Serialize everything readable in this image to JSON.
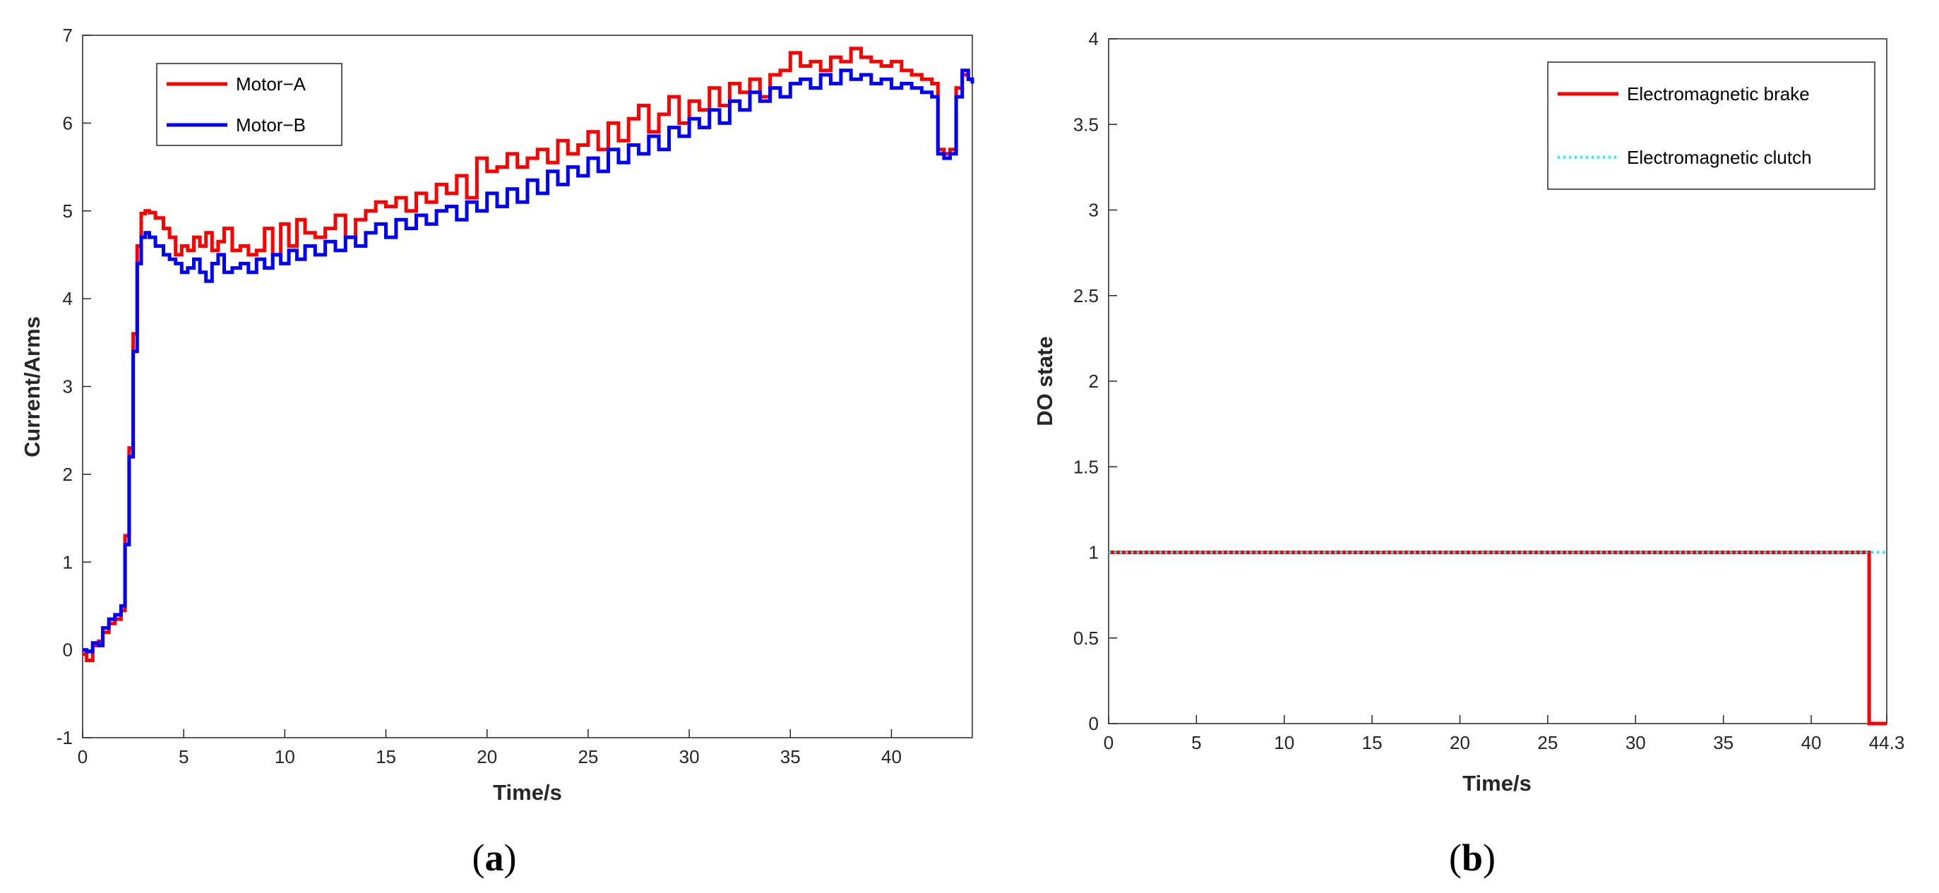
{
  "chart_data": [
    {
      "id": "a",
      "type": "line",
      "title": "",
      "xlabel": "Time/s",
      "ylabel": "Current/Arms",
      "xlim": [
        0,
        44
      ],
      "ylim": [
        -1,
        7
      ],
      "xticks": [
        0,
        5,
        10,
        15,
        20,
        25,
        30,
        35,
        40
      ],
      "yticks": [
        -1,
        0,
        1,
        2,
        3,
        4,
        5,
        6,
        7
      ],
      "grid": false,
      "legend": "top-left",
      "caption": {
        "open": "(",
        "letter": "a",
        "close": ")"
      },
      "series": [
        {
          "name": "Motor−A",
          "color": "#ff0000",
          "step": true,
          "x": [
            0,
            0.2,
            0.5,
            0.8,
            1.0,
            1.3,
            1.6,
            1.9,
            2.1,
            2.3,
            2.5,
            2.7,
            2.9,
            3.1,
            3.3,
            3.6,
            4.0,
            4.3,
            4.6,
            4.9,
            5.2,
            5.5,
            5.8,
            6.1,
            6.4,
            6.7,
            7.0,
            7.4,
            7.8,
            8.2,
            8.6,
            9.0,
            9.4,
            9.8,
            10.2,
            10.6,
            11.0,
            11.5,
            12.0,
            12.5,
            13.0,
            13.5,
            14.0,
            14.5,
            15.0,
            15.5,
            16.0,
            16.5,
            17.0,
            17.5,
            18.0,
            18.5,
            19.0,
            19.5,
            20.0,
            20.5,
            21.0,
            21.5,
            22.0,
            22.5,
            23.0,
            23.5,
            24.0,
            24.5,
            25.0,
            25.5,
            26.0,
            26.5,
            27.0,
            27.5,
            28.0,
            28.5,
            29.0,
            29.5,
            30.0,
            30.5,
            31.0,
            31.5,
            32.0,
            32.5,
            33.0,
            33.5,
            34.0,
            34.5,
            35.0,
            35.5,
            36.0,
            36.5,
            37.0,
            37.5,
            38.0,
            38.5,
            39.0,
            39.5,
            40.0,
            40.5,
            41.0,
            41.5,
            42.0,
            42.3,
            42.6,
            42.9,
            43.2,
            43.5,
            43.8,
            44.0
          ],
          "y": [
            -0.05,
            -0.12,
            0.05,
            0.1,
            0.2,
            0.3,
            0.35,
            0.45,
            1.3,
            2.3,
            3.6,
            4.6,
            4.97,
            5.0,
            4.98,
            4.92,
            4.8,
            4.7,
            4.5,
            4.6,
            4.55,
            4.7,
            4.6,
            4.75,
            4.55,
            4.65,
            4.8,
            4.55,
            4.6,
            4.5,
            4.55,
            4.8,
            4.5,
            4.85,
            4.6,
            4.9,
            4.75,
            4.7,
            4.8,
            4.95,
            4.7,
            4.9,
            5.0,
            5.1,
            5.05,
            5.15,
            5.0,
            5.2,
            5.1,
            5.3,
            5.2,
            5.4,
            5.15,
            5.6,
            5.45,
            5.5,
            5.65,
            5.5,
            5.6,
            5.7,
            5.55,
            5.8,
            5.65,
            5.75,
            5.9,
            5.7,
            6.0,
            5.8,
            6.05,
            6.2,
            5.9,
            6.1,
            6.3,
            6.0,
            6.25,
            6.15,
            6.4,
            6.2,
            6.45,
            6.35,
            6.5,
            6.3,
            6.55,
            6.6,
            6.8,
            6.65,
            6.7,
            6.6,
            6.75,
            6.7,
            6.85,
            6.75,
            6.7,
            6.65,
            6.7,
            6.6,
            6.55,
            6.5,
            6.45,
            5.7,
            5.65,
            5.7,
            6.4,
            6.55,
            6.5,
            6.45
          ]
        },
        {
          "name": "Motor−B",
          "color": "#0000ff",
          "step": true,
          "x": [
            0,
            0.2,
            0.5,
            0.8,
            1.0,
            1.3,
            1.6,
            1.9,
            2.1,
            2.3,
            2.5,
            2.7,
            2.9,
            3.1,
            3.3,
            3.6,
            4.0,
            4.3,
            4.6,
            4.9,
            5.2,
            5.5,
            5.8,
            6.1,
            6.4,
            6.7,
            7.0,
            7.4,
            7.8,
            8.2,
            8.6,
            9.0,
            9.4,
            9.8,
            10.2,
            10.6,
            11.0,
            11.5,
            12.0,
            12.5,
            13.0,
            13.5,
            14.0,
            14.5,
            15.0,
            15.5,
            16.0,
            16.5,
            17.0,
            17.5,
            18.0,
            18.5,
            19.0,
            19.5,
            20.0,
            20.5,
            21.0,
            21.5,
            22.0,
            22.5,
            23.0,
            23.5,
            24.0,
            24.5,
            25.0,
            25.5,
            26.0,
            26.5,
            27.0,
            27.5,
            28.0,
            28.5,
            29.0,
            29.5,
            30.0,
            30.5,
            31.0,
            31.5,
            32.0,
            32.5,
            33.0,
            33.5,
            34.0,
            34.5,
            35.0,
            35.5,
            36.0,
            36.5,
            37.0,
            37.5,
            38.0,
            38.5,
            39.0,
            39.5,
            40.0,
            40.5,
            41.0,
            41.5,
            42.0,
            42.3,
            42.6,
            42.9,
            43.2,
            43.5,
            43.8,
            44.0
          ],
          "y": [
            0.0,
            -0.02,
            0.08,
            0.05,
            0.25,
            0.35,
            0.4,
            0.5,
            1.2,
            2.2,
            3.4,
            4.4,
            4.7,
            4.75,
            4.7,
            4.6,
            4.5,
            4.45,
            4.4,
            4.3,
            4.35,
            4.45,
            4.3,
            4.2,
            4.4,
            4.5,
            4.3,
            4.35,
            4.4,
            4.3,
            4.45,
            4.35,
            4.5,
            4.4,
            4.55,
            4.45,
            4.6,
            4.5,
            4.65,
            4.55,
            4.7,
            4.6,
            4.75,
            4.85,
            4.7,
            4.9,
            4.8,
            4.95,
            4.85,
            5.0,
            5.05,
            4.9,
            5.1,
            5.0,
            5.2,
            5.05,
            5.25,
            5.1,
            5.35,
            5.2,
            5.45,
            5.3,
            5.5,
            5.4,
            5.6,
            5.45,
            5.7,
            5.55,
            5.75,
            5.65,
            5.85,
            5.7,
            5.95,
            5.85,
            6.05,
            5.95,
            6.15,
            6.0,
            6.25,
            6.15,
            6.35,
            6.25,
            6.4,
            6.3,
            6.45,
            6.5,
            6.4,
            6.55,
            6.45,
            6.6,
            6.5,
            6.55,
            6.45,
            6.5,
            6.4,
            6.45,
            6.4,
            6.35,
            6.3,
            5.65,
            5.6,
            5.65,
            6.3,
            6.6,
            6.5,
            6.45
          ]
        }
      ]
    },
    {
      "id": "b",
      "type": "line",
      "title": "",
      "xlabel": "Time/s",
      "ylabel": "DO state",
      "xlim": [
        0,
        44.3
      ],
      "ylim": [
        0,
        4
      ],
      "xticks": [
        0,
        5,
        10,
        15,
        20,
        25,
        30,
        35,
        40,
        44.3
      ],
      "xtick_labels": [
        "0",
        "5",
        "10",
        "15",
        "20",
        "25",
        "30",
        "35",
        "40",
        "44.3"
      ],
      "yticks": [
        0,
        0.5,
        1,
        1.5,
        2,
        2.5,
        3,
        3.5,
        4
      ],
      "ytick_labels": [
        "0",
        "0.5",
        "1",
        "1.5",
        "2",
        "2.5",
        "3",
        "3.5",
        "4"
      ],
      "grid": false,
      "legend": "top-right",
      "caption": {
        "open": "(",
        "letter": "b",
        "close": ")"
      },
      "series": [
        {
          "name": "Electromagnetic brake",
          "color": "#ff0000",
          "style": "solid",
          "x": [
            0,
            43.3,
            43.3,
            44.3
          ],
          "y": [
            1,
            1,
            0,
            0
          ]
        },
        {
          "name": "Electromagnetic clutch",
          "color": "#00ffff",
          "style": "dotted",
          "x": [
            0,
            44.3
          ],
          "y": [
            1,
            1
          ]
        }
      ]
    }
  ]
}
